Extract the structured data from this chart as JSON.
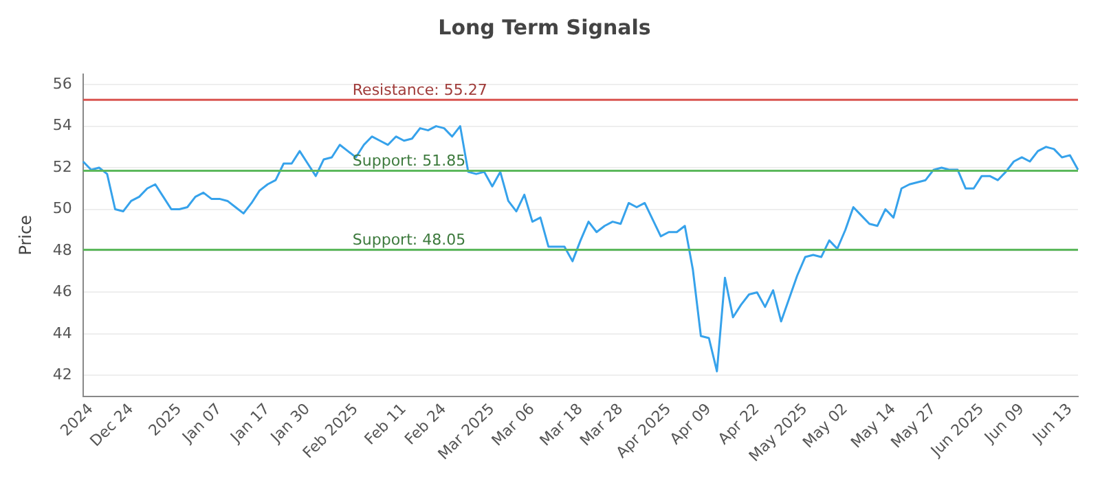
{
  "chart_data": {
    "type": "line",
    "title": "Long Term Signals",
    "ylabel": "Price",
    "categories": [
      null,
      "2024",
      null,
      null,
      null,
      null,
      "Dec 24",
      null,
      null,
      null,
      null,
      null,
      "2025",
      null,
      null,
      null,
      null,
      "Jan 07",
      null,
      null,
      null,
      null,
      null,
      "Jan 17",
      null,
      null,
      null,
      null,
      "Jan 30",
      null,
      null,
      null,
      null,
      null,
      "Feb 2025",
      null,
      null,
      null,
      null,
      null,
      "Feb 11",
      null,
      null,
      null,
      null,
      "Feb 24",
      null,
      null,
      null,
      null,
      null,
      "Mar 2025",
      null,
      null,
      null,
      null,
      "Mar 06",
      null,
      null,
      null,
      null,
      null,
      "Mar 18",
      null,
      null,
      null,
      null,
      "Mar 28",
      null,
      null,
      null,
      null,
      null,
      "Apr 2025",
      null,
      null,
      null,
      null,
      "Apr 09",
      null,
      null,
      null,
      null,
      null,
      "Apr 22",
      null,
      null,
      null,
      null,
      null,
      "May 2025",
      null,
      null,
      null,
      null,
      "May 02",
      null,
      null,
      null,
      null,
      null,
      "May 14",
      null,
      null,
      null,
      null,
      "May 27",
      null,
      null,
      null,
      null,
      null,
      "Jun 2025",
      null,
      null,
      null,
      null,
      "Jun 09",
      null,
      null,
      null,
      null,
      null,
      "Jun 13",
      null
    ],
    "series": [
      {
        "color": "#36a2eb",
        "values": [
          52.3,
          51.9,
          52.0,
          51.7,
          50.0,
          49.9,
          50.4,
          50.6,
          51.0,
          51.2,
          50.6,
          50.0,
          50.0,
          50.1,
          50.6,
          50.8,
          50.5,
          50.5,
          50.4,
          50.1,
          49.8,
          50.3,
          50.9,
          51.2,
          51.4,
          52.2,
          52.2,
          52.8,
          52.2,
          51.6,
          52.4,
          52.5,
          53.1,
          52.8,
          52.5,
          53.1,
          53.5,
          53.3,
          53.1,
          53.5,
          53.3,
          53.4,
          53.9,
          53.8,
          54.0,
          53.9,
          53.5,
          54.0,
          51.8,
          51.7,
          51.8,
          51.1,
          51.8,
          50.4,
          49.9,
          50.7,
          49.4,
          49.6,
          48.2,
          48.2,
          48.2,
          47.5,
          48.5,
          49.4,
          48.9,
          49.2,
          49.4,
          49.3,
          50.3,
          50.1,
          50.3,
          49.5,
          48.7,
          48.9,
          48.9,
          49.2,
          47.1,
          43.9,
          43.8,
          42.2,
          46.7,
          44.8,
          45.4,
          45.9,
          46.0,
          45.3,
          46.1,
          44.6,
          45.7,
          46.8,
          47.7,
          47.8,
          47.7,
          48.5,
          48.1,
          49.0,
          50.1,
          49.7,
          49.3,
          49.2,
          50.0,
          49.6,
          51.0,
          51.2,
          51.3,
          51.4,
          51.9,
          52.0,
          51.9,
          51.9,
          51.0,
          51.0,
          51.6,
          51.6,
          51.4,
          51.8,
          52.3,
          52.5,
          52.3,
          52.8,
          53.0,
          52.9,
          52.5,
          52.6,
          51.9
        ]
      }
    ],
    "ylim": [
      41,
      56.5
    ],
    "yticks": [
      42,
      44,
      46,
      48,
      50,
      52,
      54,
      56
    ],
    "grid": "y",
    "legend": false,
    "marker": "none",
    "line_style": "solid",
    "ref_lines": [
      {
        "axis": "y",
        "value": 55.27,
        "label": "Resistance: 55.27",
        "color": "#d9534f"
      },
      {
        "axis": "y",
        "value": 51.85,
        "label": "Support: 51.85",
        "color": "#5cb85c"
      },
      {
        "axis": "y",
        "value": 48.05,
        "label": "Support: 48.05",
        "color": "#5cb85c"
      }
    ]
  }
}
